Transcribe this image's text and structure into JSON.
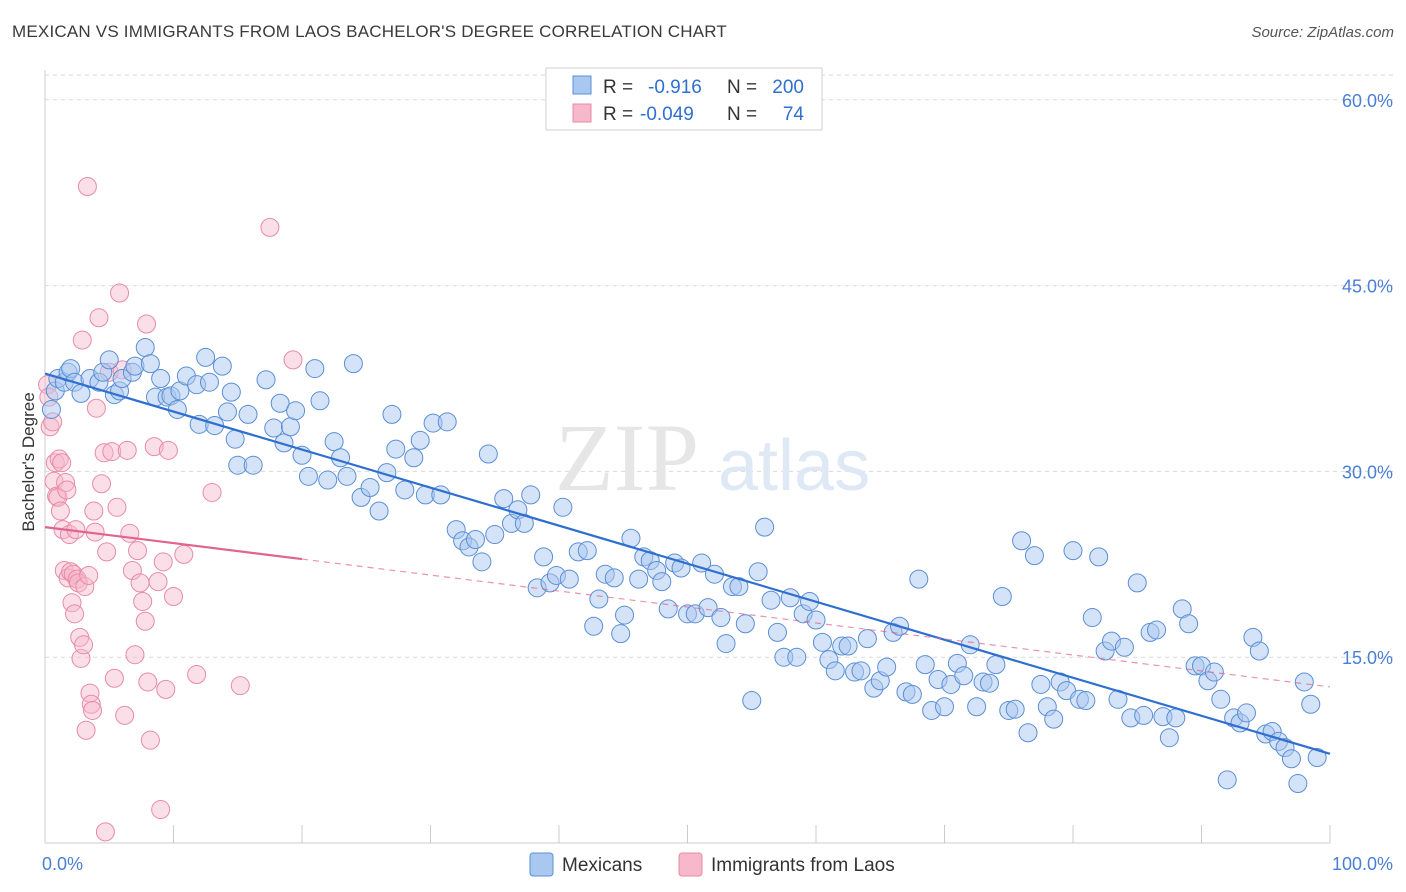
{
  "title": "MEXICAN VS IMMIGRANTS FROM LAOS BACHELOR'S DEGREE CORRELATION CHART",
  "source": "Source: ZipAtlas.com",
  "watermark": {
    "zip": "ZIP",
    "atlas": "atlas"
  },
  "colors": {
    "blue_fill": "#a9c8f0",
    "blue_stroke": "#5b8fd6",
    "blue_line": "#2f6fcf",
    "pink_fill": "#f7b8cb",
    "pink_stroke": "#e88aa6",
    "pink_line": "#e0648f",
    "tick_text": "#4a7fd4",
    "grid": "#d9d9d9"
  },
  "legend_box": {
    "rows": [
      {
        "r_label": "R =",
        "r_value": "-0.916",
        "n_label": "N =",
        "n_value": "200"
      },
      {
        "r_label": "R =",
        "r_value": "-0.049",
        "n_label": "N =",
        "n_value": "74"
      }
    ]
  },
  "chart_data": {
    "type": "scatter",
    "title": "MEXICAN VS IMMIGRANTS FROM LAOS BACHELOR'S DEGREE CORRELATION CHART",
    "xlabel": "",
    "ylabel": "Bachelor's Degree",
    "xlim": [
      0,
      100
    ],
    "ylim": [
      0,
      62
    ],
    "x_tick_labels": [
      {
        "value": 0,
        "label": "0.0%"
      },
      {
        "value": 100,
        "label": "100.0%"
      }
    ],
    "y_tick_labels": [
      {
        "value": 15,
        "label": "15.0%"
      },
      {
        "value": 30,
        "label": "30.0%"
      },
      {
        "value": 45,
        "label": "45.0%"
      },
      {
        "value": 60,
        "label": "60.0%"
      }
    ],
    "grid": true,
    "legend_position": "bottom",
    "series": [
      {
        "name": "Mexicans",
        "color": "#a9c8f0",
        "r": -0.916,
        "n": 200,
        "trend": {
          "x": [
            0,
            100
          ],
          "y": [
            37.9,
            7.2
          ],
          "style": "solid"
        },
        "points": [
          [
            0.5,
            35.0
          ],
          [
            0.8,
            36.5
          ],
          [
            1.0,
            37.5
          ],
          [
            1.5,
            37.2
          ],
          [
            1.8,
            38.0
          ],
          [
            2.0,
            38.3
          ],
          [
            2.3,
            37.2
          ],
          [
            2.8,
            36.3
          ],
          [
            3.5,
            37.5
          ],
          [
            4.2,
            37.2
          ],
          [
            4.5,
            38.0
          ],
          [
            5.0,
            39.0
          ],
          [
            5.4,
            36.2
          ],
          [
            5.8,
            36.5
          ],
          [
            6.0,
            37.5
          ],
          [
            6.8,
            38.0
          ],
          [
            7.0,
            38.5
          ],
          [
            7.8,
            40.0
          ],
          [
            8.2,
            38.7
          ],
          [
            8.6,
            36.0
          ],
          [
            9.0,
            37.5
          ],
          [
            9.5,
            36.0
          ],
          [
            9.8,
            36.1
          ],
          [
            10.3,
            35.0
          ],
          [
            10.5,
            36.5
          ],
          [
            11.0,
            37.7
          ],
          [
            11.8,
            37.0
          ],
          [
            12.0,
            33.8
          ],
          [
            12.5,
            39.2
          ],
          [
            12.8,
            37.2
          ],
          [
            13.2,
            33.7
          ],
          [
            13.8,
            38.5
          ],
          [
            14.2,
            34.8
          ],
          [
            14.5,
            36.4
          ],
          [
            14.8,
            32.6
          ],
          [
            15.0,
            30.5
          ],
          [
            15.8,
            34.6
          ],
          [
            16.2,
            30.5
          ],
          [
            17.2,
            37.4
          ],
          [
            17.8,
            33.5
          ],
          [
            18.3,
            35.5
          ],
          [
            18.6,
            32.3
          ],
          [
            19.1,
            33.6
          ],
          [
            19.5,
            34.9
          ],
          [
            20.0,
            31.3
          ],
          [
            20.5,
            29.6
          ],
          [
            21.0,
            38.3
          ],
          [
            21.4,
            35.7
          ],
          [
            22.0,
            29.3
          ],
          [
            22.5,
            32.4
          ],
          [
            23.0,
            31.1
          ],
          [
            23.5,
            29.6
          ],
          [
            24.0,
            38.7
          ],
          [
            24.6,
            27.9
          ],
          [
            25.3,
            28.7
          ],
          [
            26.0,
            26.8
          ],
          [
            26.6,
            29.9
          ],
          [
            27.0,
            34.6
          ],
          [
            27.3,
            31.8
          ],
          [
            28.0,
            28.5
          ],
          [
            28.7,
            31.1
          ],
          [
            29.2,
            32.5
          ],
          [
            29.6,
            28.1
          ],
          [
            30.2,
            33.9
          ],
          [
            30.8,
            28.1
          ],
          [
            31.3,
            34.0
          ],
          [
            32.0,
            25.3
          ],
          [
            32.5,
            24.4
          ],
          [
            33.0,
            23.9
          ],
          [
            33.5,
            24.5
          ],
          [
            34.0,
            22.7
          ],
          [
            34.5,
            31.4
          ],
          [
            35.0,
            24.9
          ],
          [
            35.7,
            27.8
          ],
          [
            36.3,
            25.8
          ],
          [
            36.8,
            26.9
          ],
          [
            37.3,
            25.8
          ],
          [
            37.8,
            28.1
          ],
          [
            38.3,
            20.6
          ],
          [
            38.8,
            23.1
          ],
          [
            39.3,
            21.0
          ],
          [
            39.8,
            21.6
          ],
          [
            40.3,
            27.1
          ],
          [
            40.8,
            21.3
          ],
          [
            41.5,
            23.5
          ],
          [
            42.2,
            23.6
          ],
          [
            42.7,
            17.5
          ],
          [
            43.1,
            19.7
          ],
          [
            43.6,
            21.7
          ],
          [
            44.3,
            21.4
          ],
          [
            44.8,
            16.9
          ],
          [
            45.1,
            18.4
          ],
          [
            45.6,
            24.6
          ],
          [
            46.2,
            21.3
          ],
          [
            46.6,
            23.1
          ],
          [
            47.1,
            22.8
          ],
          [
            47.6,
            22.0
          ],
          [
            48.0,
            21.1
          ],
          [
            48.5,
            18.9
          ],
          [
            49.0,
            22.6
          ],
          [
            49.5,
            22.2
          ],
          [
            50.0,
            18.5
          ],
          [
            50.6,
            18.5
          ],
          [
            51.1,
            22.6
          ],
          [
            51.6,
            19.0
          ],
          [
            52.1,
            21.7
          ],
          [
            52.6,
            18.2
          ],
          [
            53.0,
            16.1
          ],
          [
            53.5,
            20.7
          ],
          [
            54.0,
            20.7
          ],
          [
            54.5,
            17.7
          ],
          [
            55.0,
            11.5
          ],
          [
            55.5,
            21.9
          ],
          [
            56.0,
            25.5
          ],
          [
            56.5,
            19.6
          ],
          [
            57.0,
            17.0
          ],
          [
            57.5,
            15.0
          ],
          [
            58.0,
            19.8
          ],
          [
            58.5,
            15.0
          ],
          [
            59.0,
            18.5
          ],
          [
            59.5,
            19.5
          ],
          [
            60.0,
            18.0
          ],
          [
            60.5,
            16.2
          ],
          [
            61.0,
            14.8
          ],
          [
            61.5,
            13.9
          ],
          [
            62.0,
            15.9
          ],
          [
            62.5,
            15.9
          ],
          [
            63.0,
            13.8
          ],
          [
            63.5,
            13.9
          ],
          [
            64.0,
            16.5
          ],
          [
            64.5,
            12.5
          ],
          [
            65.0,
            13.1
          ],
          [
            65.5,
            14.2
          ],
          [
            66.0,
            17.0
          ],
          [
            66.5,
            17.5
          ],
          [
            67.0,
            12.2
          ],
          [
            67.5,
            12.0
          ],
          [
            68.0,
            21.3
          ],
          [
            68.5,
            14.4
          ],
          [
            69.0,
            10.7
          ],
          [
            69.5,
            13.2
          ],
          [
            70.0,
            11.0
          ],
          [
            70.5,
            12.8
          ],
          [
            71.0,
            14.5
          ],
          [
            71.5,
            13.5
          ],
          [
            72.0,
            16.0
          ],
          [
            72.5,
            11.0
          ],
          [
            73.0,
            13.0
          ],
          [
            73.5,
            12.9
          ],
          [
            74.0,
            14.4
          ],
          [
            74.5,
            19.9
          ],
          [
            75.0,
            10.7
          ],
          [
            75.5,
            10.8
          ],
          [
            76.0,
            24.4
          ],
          [
            76.5,
            8.9
          ],
          [
            77.0,
            23.2
          ],
          [
            77.5,
            12.8
          ],
          [
            78.0,
            11.0
          ],
          [
            78.5,
            10.0
          ],
          [
            79.0,
            13.0
          ],
          [
            79.5,
            12.3
          ],
          [
            80.0,
            23.6
          ],
          [
            80.5,
            11.6
          ],
          [
            81.0,
            11.5
          ],
          [
            81.5,
            18.2
          ],
          [
            82.0,
            23.1
          ],
          [
            82.5,
            15.5
          ],
          [
            83.0,
            16.3
          ],
          [
            83.5,
            11.6
          ],
          [
            84.0,
            15.8
          ],
          [
            84.5,
            10.1
          ],
          [
            85.0,
            21.0
          ],
          [
            85.5,
            10.3
          ],
          [
            86.0,
            17.0
          ],
          [
            86.5,
            17.2
          ],
          [
            87.0,
            10.2
          ],
          [
            87.5,
            8.5
          ],
          [
            88.0,
            10.1
          ],
          [
            88.5,
            18.9
          ],
          [
            89.0,
            17.7
          ],
          [
            89.5,
            14.3
          ],
          [
            90.0,
            14.3
          ],
          [
            90.5,
            13.1
          ],
          [
            91.0,
            13.8
          ],
          [
            91.5,
            11.6
          ],
          [
            92.0,
            5.1
          ],
          [
            92.5,
            10.1
          ],
          [
            93.0,
            9.7
          ],
          [
            93.5,
            10.5
          ],
          [
            94.0,
            16.6
          ],
          [
            94.5,
            15.5
          ],
          [
            95.0,
            8.8
          ],
          [
            95.5,
            9.0
          ],
          [
            96.0,
            8.2
          ],
          [
            96.5,
            7.7
          ],
          [
            97.0,
            6.8
          ],
          [
            97.5,
            4.8
          ],
          [
            98.0,
            13.0
          ],
          [
            98.5,
            11.2
          ],
          [
            99.0,
            6.9
          ]
        ]
      },
      {
        "name": "Immigrants from Laos",
        "color": "#f7b8cb",
        "r": -0.049,
        "n": 74,
        "trend": {
          "x": [
            0,
            100
          ],
          "y": [
            25.5,
            12.6
          ],
          "solid_until_x": 20,
          "style": "solid-then-dashed"
        },
        "points": [
          [
            0.2,
            37.0
          ],
          [
            0.3,
            36.0
          ],
          [
            0.4,
            33.6
          ],
          [
            0.6,
            34.0
          ],
          [
            0.7,
            29.2
          ],
          [
            0.8,
            30.7
          ],
          [
            0.9,
            28.0
          ],
          [
            1.0,
            27.9
          ],
          [
            1.1,
            31.0
          ],
          [
            1.2,
            26.8
          ],
          [
            1.3,
            30.7
          ],
          [
            1.4,
            25.3
          ],
          [
            1.5,
            22.0
          ],
          [
            1.6,
            29.1
          ],
          [
            1.7,
            28.5
          ],
          [
            1.8,
            21.4
          ],
          [
            1.9,
            24.9
          ],
          [
            2.0,
            21.9
          ],
          [
            2.1,
            19.4
          ],
          [
            2.2,
            21.7
          ],
          [
            2.3,
            18.5
          ],
          [
            2.4,
            25.3
          ],
          [
            2.5,
            21.3
          ],
          [
            2.6,
            21.0
          ],
          [
            2.7,
            16.6
          ],
          [
            2.8,
            14.9
          ],
          [
            2.9,
            40.6
          ],
          [
            3.0,
            16.0
          ],
          [
            3.1,
            20.7
          ],
          [
            3.2,
            9.1
          ],
          [
            3.3,
            53.0
          ],
          [
            3.4,
            21.6
          ],
          [
            3.5,
            12.1
          ],
          [
            3.6,
            11.2
          ],
          [
            3.7,
            10.7
          ],
          [
            3.8,
            26.8
          ],
          [
            3.9,
            25.1
          ],
          [
            4.0,
            35.1
          ],
          [
            4.2,
            42.4
          ],
          [
            4.4,
            29.0
          ],
          [
            4.6,
            31.5
          ],
          [
            4.8,
            23.5
          ],
          [
            5.0,
            38.0
          ],
          [
            5.2,
            31.6
          ],
          [
            5.4,
            13.3
          ],
          [
            5.6,
            27.1
          ],
          [
            5.8,
            44.4
          ],
          [
            6.0,
            38.2
          ],
          [
            6.2,
            10.3
          ],
          [
            6.4,
            31.7
          ],
          [
            6.6,
            25.0
          ],
          [
            6.8,
            22.0
          ],
          [
            7.0,
            15.2
          ],
          [
            7.2,
            23.6
          ],
          [
            7.4,
            21.0
          ],
          [
            7.6,
            19.5
          ],
          [
            7.8,
            17.9
          ],
          [
            7.9,
            41.9
          ],
          [
            8.0,
            13.0
          ],
          [
            8.2,
            8.3
          ],
          [
            8.5,
            32.0
          ],
          [
            8.8,
            21.1
          ],
          [
            9.0,
            2.7
          ],
          [
            9.2,
            22.7
          ],
          [
            9.4,
            12.4
          ],
          [
            9.6,
            31.7
          ],
          [
            10.0,
            19.9
          ],
          [
            10.8,
            23.3
          ],
          [
            11.8,
            13.6
          ],
          [
            13.0,
            28.3
          ],
          [
            15.2,
            12.7
          ],
          [
            17.5,
            49.7
          ],
          [
            19.3,
            39.0
          ],
          [
            4.7,
            0.9
          ]
        ]
      }
    ]
  },
  "bottom_legend": [
    {
      "label": "Mexicans"
    },
    {
      "label": "Immigrants from Laos"
    }
  ]
}
